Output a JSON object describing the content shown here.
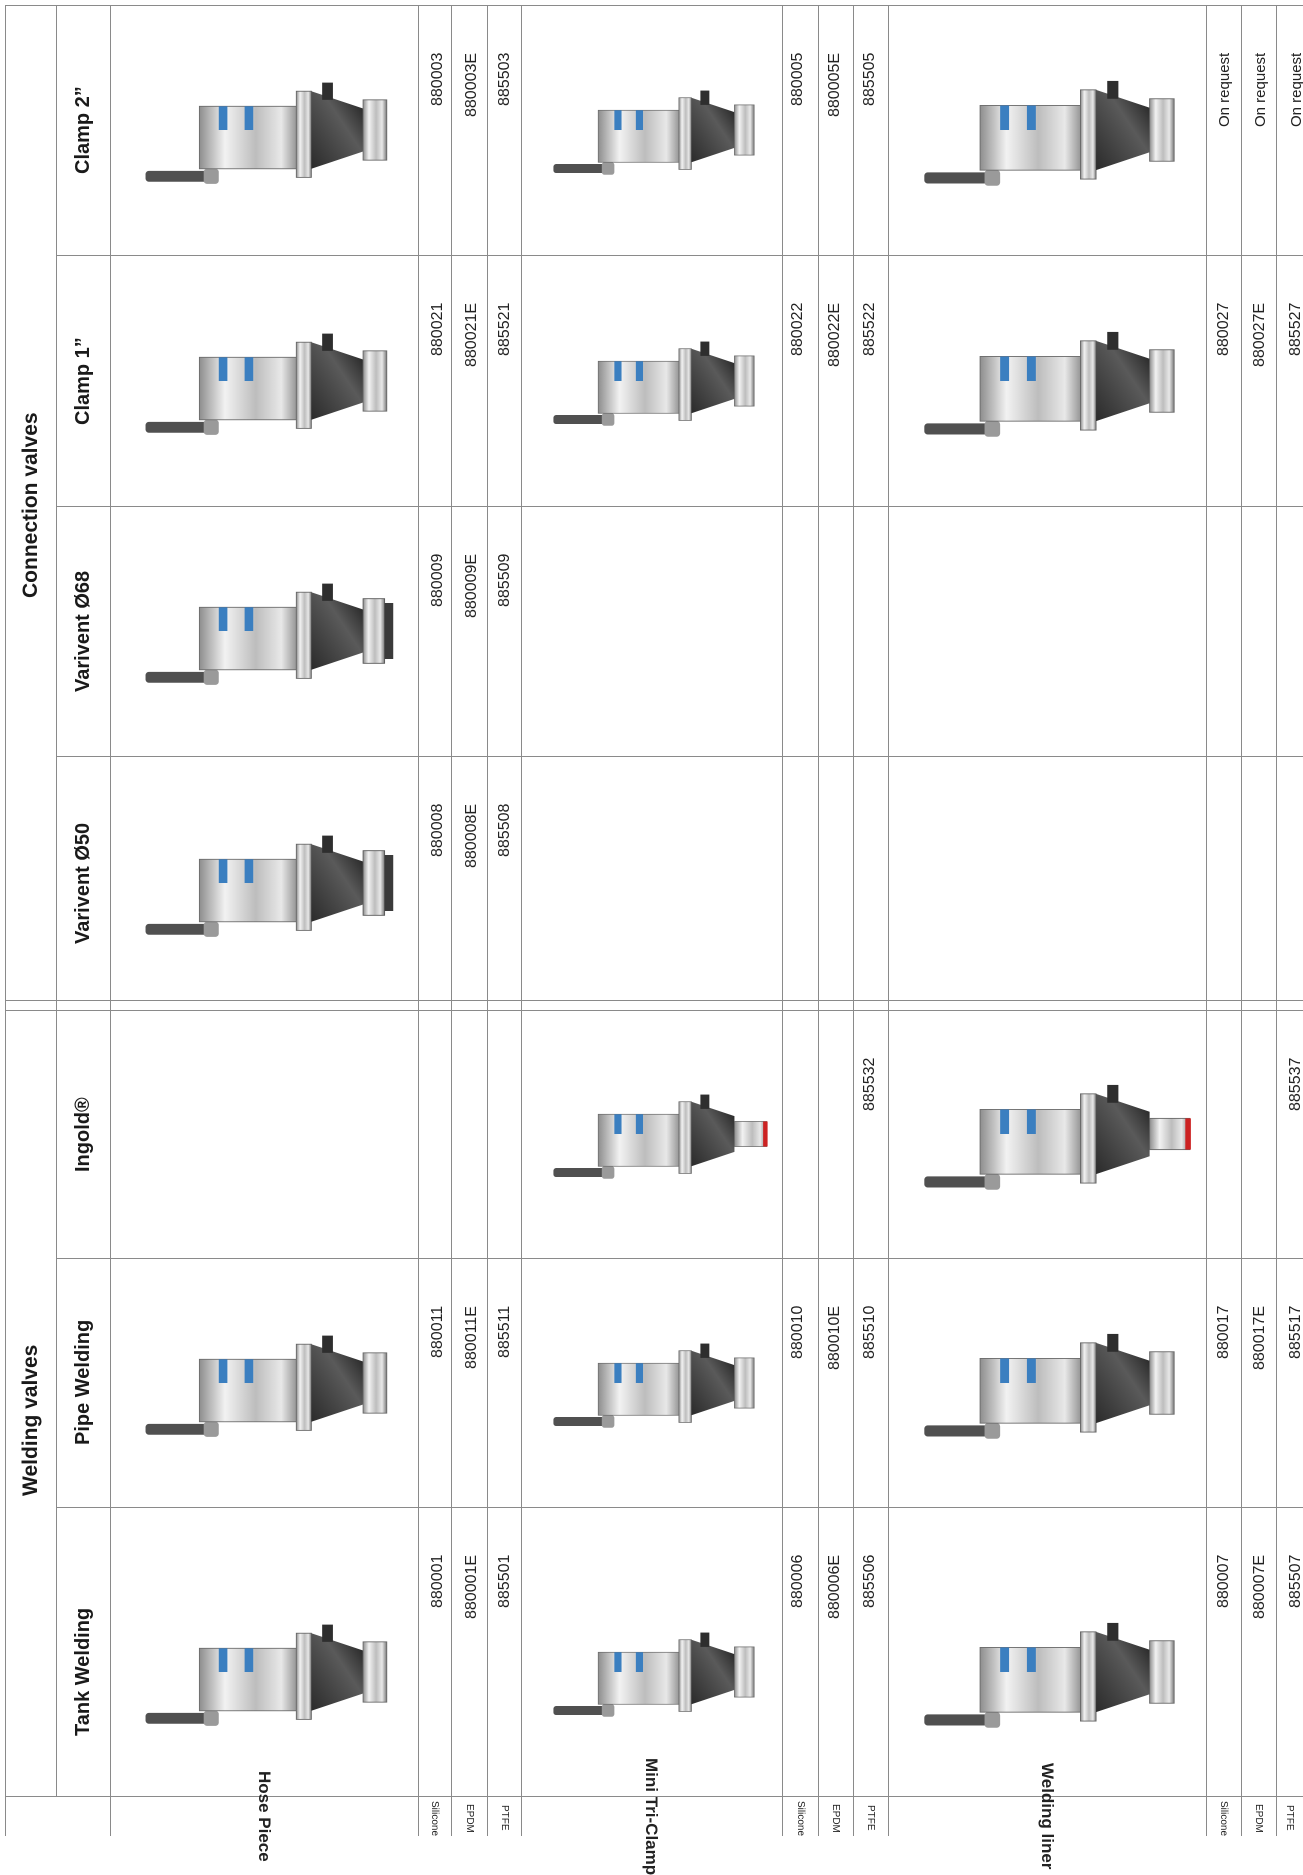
{
  "groups": [
    {
      "title": "Welding valves"
    },
    {
      "title": "Connection valves"
    }
  ],
  "columns": [
    {
      "label": "Tank Welding"
    },
    {
      "label": "Pipe Welding"
    },
    {
      "label": "Ingold®"
    },
    {
      "label": "Varivent Ø50"
    },
    {
      "label": "Varivent Ø68"
    },
    {
      "label": "Clamp 1”"
    },
    {
      "label": "Clamp 2”"
    }
  ],
  "rows": [
    {
      "label": "Hose Piece",
      "materials": [
        "Silicone",
        "EPDM",
        "PTFE"
      ],
      "codes": [
        [
          "880001",
          "880001E",
          "885501"
        ],
        [
          "880011",
          "880011E",
          "885511"
        ],
        [
          "",
          "",
          ""
        ],
        [
          "880008",
          "880008E",
          "885508"
        ],
        [
          "880009",
          "880009E",
          "885509"
        ],
        [
          "880021",
          "880021E",
          "885521"
        ],
        [
          "880003",
          "880003E",
          "885503"
        ]
      ]
    },
    {
      "label": "Mini Tri-Clamp",
      "materials": [
        "Silicone",
        "EPDM",
        "PTFE"
      ],
      "codes": [
        [
          "880006",
          "880006E",
          "885506"
        ],
        [
          "880010",
          "880010E",
          "885510"
        ],
        [
          "",
          "",
          "885532"
        ],
        [
          "",
          "",
          ""
        ],
        [
          "",
          "",
          ""
        ],
        [
          "880022",
          "880022E",
          "885522"
        ],
        [
          "880005",
          "880005E",
          "885505"
        ]
      ]
    },
    {
      "label": "Welding liner",
      "materials": [
        "Silicone",
        "EPDM",
        "PTFE"
      ],
      "codes": [
        [
          "880007",
          "880007E",
          "885507"
        ],
        [
          "880017",
          "880017E",
          "885517"
        ],
        [
          "",
          "",
          "885537"
        ],
        [
          "",
          "",
          ""
        ],
        [
          "",
          "",
          ""
        ],
        [
          "880027",
          "880027E",
          "885527"
        ],
        [
          "On request",
          "On request",
          "On request"
        ]
      ]
    }
  ]
}
